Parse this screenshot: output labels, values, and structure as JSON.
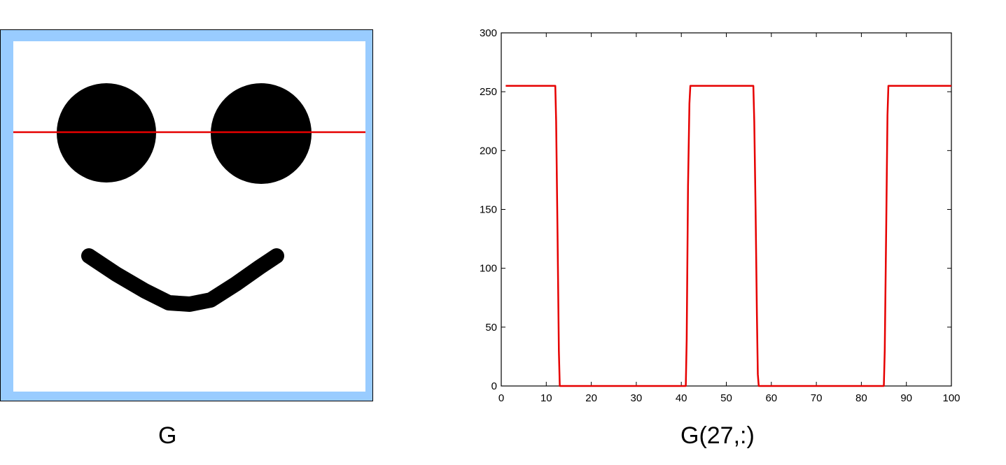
{
  "image_panel": {
    "caption": "G",
    "colors": {
      "frame": "#99ccff",
      "face": "#000000",
      "scanline": "#e60000",
      "background": "#ffffff"
    }
  },
  "chart_data": {
    "type": "line",
    "caption": "G(27,:)",
    "title": "",
    "xlabel": "",
    "ylabel": "",
    "xlim": [
      0,
      100
    ],
    "ylim": [
      0,
      300
    ],
    "xticks": [
      0,
      10,
      20,
      30,
      40,
      50,
      60,
      70,
      80,
      90,
      100
    ],
    "yticks": [
      0,
      50,
      100,
      150,
      200,
      250,
      300
    ],
    "grid": false,
    "color": "#e60000",
    "series": [
      {
        "x": [
          1,
          12,
          12.2,
          12.5,
          12.8,
          13,
          13.2,
          41,
          41.2,
          41.5,
          41.8,
          42,
          56,
          56.2,
          56.5,
          56.8,
          57,
          57.2,
          85,
          85.2,
          85.5,
          85.8,
          86,
          100
        ],
        "y": [
          255,
          255,
          225,
          130,
          30,
          0,
          0,
          0,
          40,
          170,
          240,
          255,
          255,
          225,
          150,
          60,
          10,
          0,
          0,
          30,
          130,
          230,
          255,
          255
        ]
      }
    ]
  }
}
